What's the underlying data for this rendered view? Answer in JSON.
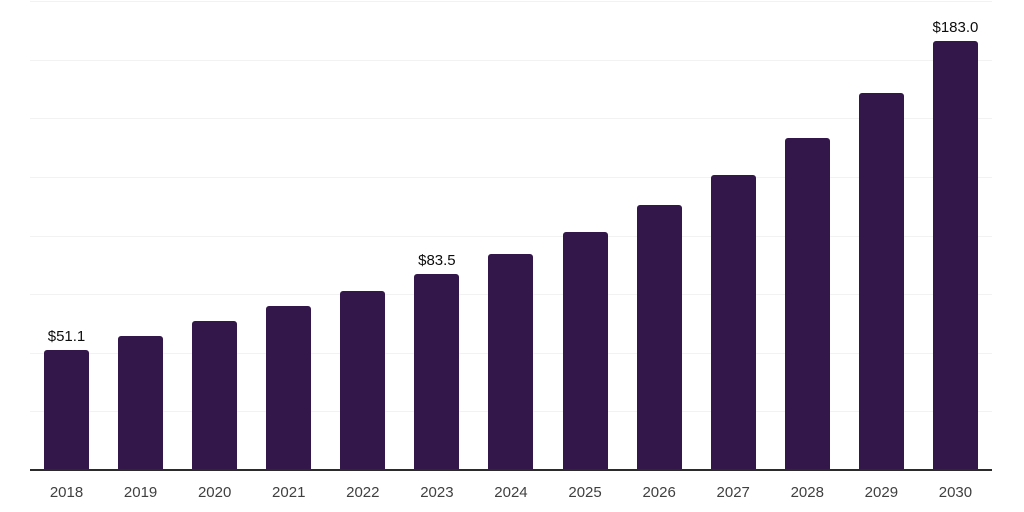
{
  "chart_data": {
    "type": "bar",
    "title": "",
    "xlabel": "",
    "ylabel": "",
    "categories": [
      "2018",
      "2019",
      "2020",
      "2021",
      "2022",
      "2023",
      "2024",
      "2025",
      "2026",
      "2027",
      "2028",
      "2029",
      "2030"
    ],
    "values": [
      51.1,
      57.0,
      63.6,
      70.0,
      76.3,
      83.5,
      92.0,
      101.5,
      112.8,
      125.9,
      141.6,
      160.6,
      183.0
    ],
    "bar_labels": [
      "$51.1",
      "",
      "",
      "",
      "",
      "$83.5",
      "",
      "",
      "",
      "",
      "",
      "",
      "$183.0"
    ],
    "ylim": [
      0,
      200
    ],
    "gridline_step": 25,
    "grid": true,
    "legend": false,
    "colors": {
      "bar": "#33164a",
      "axis_line": "#2b2b2b",
      "gridline": "#f2f2f2",
      "data_label": "#0d0d0d",
      "tick_label": "#404040",
      "background": "#ffffff"
    }
  }
}
